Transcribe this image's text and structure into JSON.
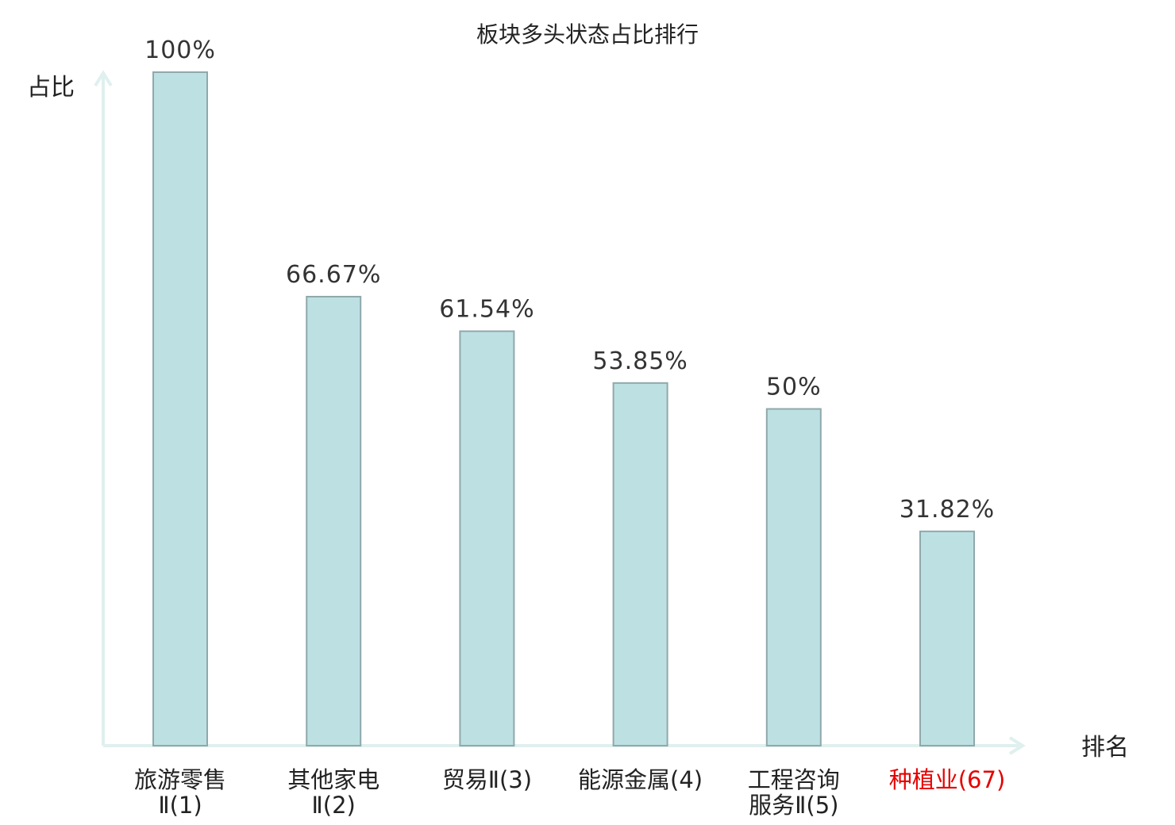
{
  "chart_data": {
    "type": "bar",
    "title": "板块多头状态占比排行",
    "ylabel": "占比",
    "xlabel": "排名",
    "ylim": [
      0,
      100
    ],
    "grid": false,
    "categories": [
      [
        "旅游零售",
        "Ⅱ(1)"
      ],
      [
        "其他家电",
        "Ⅱ(2)"
      ],
      [
        "贸易Ⅱ(3)"
      ],
      [
        "能源金属(4)"
      ],
      [
        "工程咨询",
        "服务Ⅱ(5)"
      ],
      [
        "种植业(67)"
      ]
    ],
    "values": [
      100,
      66.67,
      61.54,
      53.85,
      50,
      31.82
    ],
    "value_labels": [
      "100%",
      "66.67%",
      "61.54%",
      "53.85%",
      "50%",
      "31.82%"
    ],
    "highlight_index": 5,
    "colors": {
      "bar_fill": "#bde0e3",
      "bar_stroke": "#8fa9ab",
      "axis": "#dff0ee",
      "highlight": "#e60000"
    }
  }
}
